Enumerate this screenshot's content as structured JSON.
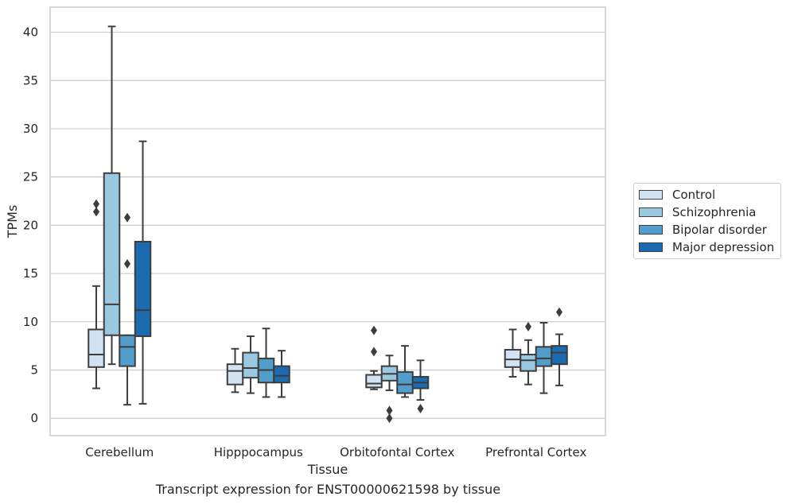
{
  "chart_data": {
    "type": "box",
    "xlabel": "Tissue",
    "ylabel": "TPMs",
    "ylim": [
      -1.8,
      42.6
    ],
    "yticks": [
      0,
      5,
      10,
      15,
      20,
      25,
      30,
      35,
      40
    ],
    "grid": "y",
    "legend_position": "right",
    "categories": [
      "Cerebellum",
      "Hipppocampus",
      "Orbitofontal Cortex",
      "Prefrontal Cortex"
    ],
    "series": [
      {
        "name": "Control",
        "color": "#d1e2f2",
        "boxes": [
          {
            "whisker_low": 3.1,
            "q1": 5.3,
            "median": 6.6,
            "q3": 9.2,
            "whisker_high": 13.7,
            "outliers": [
              21.4,
              22.2
            ]
          },
          {
            "whisker_low": 2.7,
            "q1": 3.5,
            "median": 4.9,
            "q3": 5.6,
            "whisker_high": 7.2,
            "outliers": []
          },
          {
            "whisker_low": 3.0,
            "q1": 3.2,
            "median": 3.6,
            "q3": 4.5,
            "whisker_high": 4.9,
            "outliers": [
              6.9,
              9.1
            ]
          },
          {
            "whisker_low": 4.3,
            "q1": 5.3,
            "median": 6.1,
            "q3": 7.1,
            "whisker_high": 9.2,
            "outliers": []
          }
        ]
      },
      {
        "name": "Schizophrenia",
        "color": "#9ac8e0",
        "boxes": [
          {
            "whisker_low": 5.6,
            "q1": 8.6,
            "median": 11.8,
            "q3": 25.4,
            "whisker_high": 40.6,
            "outliers": []
          },
          {
            "whisker_low": 2.6,
            "q1": 4.2,
            "median": 5.2,
            "q3": 6.8,
            "whisker_high": 8.5,
            "outliers": []
          },
          {
            "whisker_low": 2.9,
            "q1": 3.9,
            "median": 4.6,
            "q3": 5.4,
            "whisker_high": 6.5,
            "outliers": [
              0.0,
              0.8
            ]
          },
          {
            "whisker_low": 3.5,
            "q1": 4.9,
            "median": 6.0,
            "q3": 6.6,
            "whisker_high": 8.1,
            "outliers": [
              9.5
            ]
          }
        ]
      },
      {
        "name": "Bipolar disorder",
        "color": "#529dcc",
        "boxes": [
          {
            "whisker_low": 1.4,
            "q1": 5.4,
            "median": 7.4,
            "q3": 8.6,
            "whisker_high": 8.6,
            "outliers": [
              16.0,
              20.8
            ]
          },
          {
            "whisker_low": 2.2,
            "q1": 3.7,
            "median": 5.0,
            "q3": 6.2,
            "whisker_high": 9.3,
            "outliers": []
          },
          {
            "whisker_low": 2.2,
            "q1": 2.6,
            "median": 3.5,
            "q3": 4.8,
            "whisker_high": 7.5,
            "outliers": []
          },
          {
            "whisker_low": 2.6,
            "q1": 5.4,
            "median": 6.2,
            "q3": 7.4,
            "whisker_high": 9.9,
            "outliers": []
          }
        ]
      },
      {
        "name": "Major depression",
        "color": "#1c6aaf",
        "boxes": [
          {
            "whisker_low": 1.5,
            "q1": 8.5,
            "median": 11.2,
            "q3": 18.3,
            "whisker_high": 28.7,
            "outliers": []
          },
          {
            "whisker_low": 2.2,
            "q1": 3.7,
            "median": 4.4,
            "q3": 5.4,
            "whisker_high": 7.0,
            "outliers": []
          },
          {
            "whisker_low": 1.9,
            "q1": 3.1,
            "median": 3.7,
            "q3": 4.3,
            "whisker_high": 6.0,
            "outliers": [
              1.0
            ]
          },
          {
            "whisker_low": 3.4,
            "q1": 5.6,
            "median": 6.8,
            "q3": 7.5,
            "whisker_high": 8.7,
            "outliers": [
              11.0
            ]
          }
        ]
      }
    ],
    "caption": "Transcript expression for ENST00000621598 by tissue"
  }
}
